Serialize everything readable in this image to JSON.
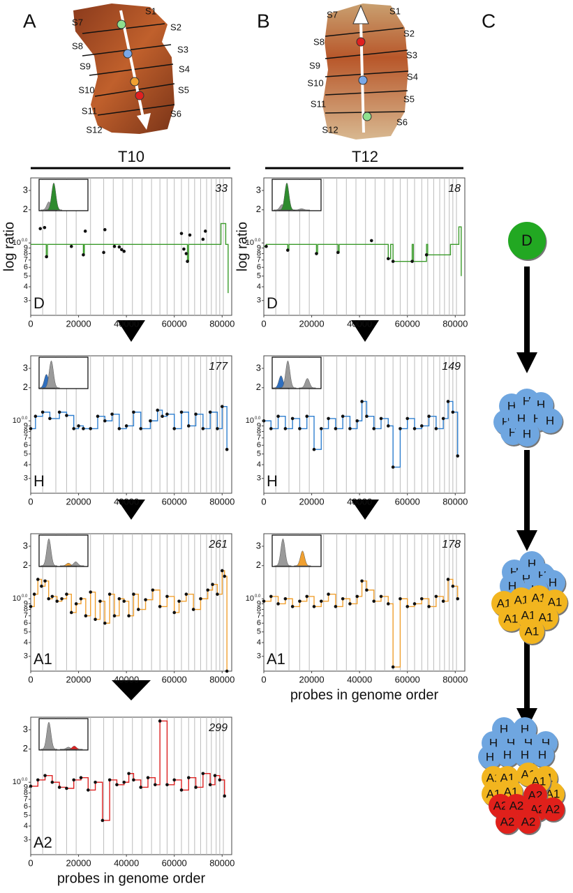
{
  "panels": [
    "A",
    "B",
    "C"
  ],
  "columns": [
    {
      "title": "T10"
    },
    {
      "title": "T12"
    }
  ],
  "images": [
    {
      "slices": [
        "S1",
        "S2",
        "S3",
        "S4",
        "S5",
        "S6",
        "S7",
        "S8",
        "S9",
        "S10",
        "S11",
        "S12"
      ]
    },
    {
      "slices": [
        "S1",
        "S2",
        "S3",
        "S4",
        "S5",
        "S6",
        "S7",
        "S8",
        "S9",
        "S10",
        "S11",
        "S12"
      ]
    }
  ],
  "chromosome_boundaries": [
    5000,
    10500,
    15000,
    19000,
    25000,
    30500,
    34500,
    38500,
    42500,
    46500,
    50500,
    54000,
    57000,
    60000,
    63000,
    66000,
    68500,
    71000,
    73500,
    75500,
    77500,
    79000,
    80500
  ],
  "chart_data": [
    {
      "type": "step",
      "label": "D",
      "count": 33,
      "ylabel": "log ratio",
      "log": true,
      "xlim": [
        0,
        84000
      ],
      "xticks": [
        0,
        20000,
        40000,
        60000,
        80000
      ],
      "ylim": [
        0.22,
        3.9
      ],
      "yticks": [
        3,
        2,
        {
          "value": 1,
          "label": "10",
          "superscript": "0.0"
        },
        {
          "value": 0.9,
          "label": "9"
        },
        {
          "value": 0.8,
          "label": "8"
        },
        {
          "value": 0.7,
          "label": "7"
        },
        {
          "value": 0.6,
          "label": "6"
        },
        {
          "value": 0.5,
          "label": "5"
        },
        {
          "value": 0.4,
          "label": "4"
        },
        {
          "value": 0.3,
          "label": "3"
        }
      ],
      "inset": {
        "peaks": [
          {
            "center": 0.2,
            "height": 0.3,
            "color": "#9a9a9a"
          },
          {
            "center": 0.3,
            "height": 1,
            "color": "#2e8b2e"
          }
        ]
      },
      "line": {
        "color": "#3a9a2a",
        "x": [
          0,
          6500,
          7000,
          22000,
          22400,
          60000,
          65500,
          66000,
          79500,
          81500,
          82500
        ],
        "values": [
          0.97,
          0.75,
          0.97,
          0.78,
          0.97,
          0.97,
          0.68,
          0.97,
          1.5,
          0.97,
          0.35
        ]
      },
      "points": {
        "x": [
          4000,
          5800,
          6600,
          17000,
          22000,
          22800,
          30500,
          31000,
          35000,
          37000,
          38000,
          39000,
          63000,
          64000,
          65000,
          65500,
          66500,
          72000,
          73000
        ],
        "values": [
          1.35,
          1.38,
          0.75,
          0.93,
          0.78,
          1.28,
          0.82,
          1.32,
          0.93,
          0.92,
          0.87,
          0.84,
          1.22,
          0.88,
          0.8,
          0.68,
          1.18,
          1.08,
          1.28
        ]
      }
    },
    {
      "type": "step",
      "label": "D",
      "count": 18,
      "ylabel": "log ratio",
      "log": true,
      "xlim": [
        0,
        84000
      ],
      "xticks": [
        0,
        20000,
        40000,
        60000,
        80000
      ],
      "ylim": [
        0.22,
        3.9
      ],
      "yticks": [
        3,
        2,
        {
          "value": 1,
          "label": "10",
          "superscript": "0.0"
        },
        {
          "value": 0.9,
          "label": "9"
        },
        {
          "value": 0.8,
          "label": "8"
        },
        {
          "value": 0.7,
          "label": "7"
        },
        {
          "value": 0.6,
          "label": "6"
        },
        {
          "value": 0.5,
          "label": "5"
        },
        {
          "value": 0.4,
          "label": "4"
        },
        {
          "value": 0.3,
          "label": "3"
        }
      ],
      "inset": {
        "peaks": [
          {
            "center": 0.2,
            "height": 0.2,
            "color": "#9a9a9a"
          },
          {
            "center": 0.3,
            "height": 1,
            "color": "#2e8b2e"
          },
          {
            "center": 0.6,
            "height": 0.05,
            "color": "#9a9a9a"
          }
        ]
      },
      "line": {
        "color": "#3a9a2a",
        "x": [
          0,
          1000,
          10000,
          10500,
          22000,
          22500,
          31000,
          31500,
          52000,
          53000,
          54000,
          62000,
          62500,
          68000,
          68500,
          78000,
          81500,
          82500
        ],
        "values": [
          0.93,
          0.97,
          0.86,
          0.97,
          0.8,
          0.97,
          0.82,
          0.97,
          0.72,
          0.97,
          0.68,
          0.97,
          0.68,
          0.97,
          0.78,
          0.97,
          1.4,
          0.5
        ]
      },
      "points": {
        "x": [
          1000,
          10000,
          22000,
          31000,
          45000,
          52000,
          54000,
          62000,
          68000
        ],
        "values": [
          0.93,
          0.86,
          0.8,
          0.82,
          1.05,
          0.72,
          0.68,
          0.68,
          0.78
        ]
      }
    },
    {
      "type": "step",
      "label": "H",
      "count": 177,
      "log": true,
      "xlim": [
        0,
        84000
      ],
      "xticks": [
        0,
        20000,
        40000,
        60000,
        80000
      ],
      "ylim": [
        0.22,
        3.9
      ],
      "yticks": [
        3,
        2,
        {
          "value": 1,
          "label": "10",
          "superscript": "0.0"
        },
        {
          "value": 0.9,
          "label": "9"
        },
        {
          "value": 0.8,
          "label": "8"
        },
        {
          "value": 0.7,
          "label": "7"
        },
        {
          "value": 0.6,
          "label": "6"
        },
        {
          "value": 0.5,
          "label": "5"
        },
        {
          "value": 0.4,
          "label": "4"
        },
        {
          "value": 0.3,
          "label": "3"
        }
      ],
      "inset": {
        "peaks": [
          {
            "center": 0.15,
            "height": 0.5,
            "color": "#2f6fbf"
          },
          {
            "center": 0.25,
            "height": 1,
            "color": "#9a9a9a"
          }
        ]
      },
      "line": {
        "color": "#2f7fcf",
        "x": [
          0,
          2000,
          5000,
          8000,
          12000,
          15000,
          18000,
          20000,
          22000,
          25000,
          28000,
          31000,
          34000,
          37000,
          40000,
          43000,
          46000,
          50000,
          53000,
          55000,
          57000,
          60000,
          63000,
          66000,
          69000,
          72000,
          75000,
          78000,
          80000,
          82000
        ],
        "values": [
          0.85,
          1.1,
          1.2,
          1.05,
          1.2,
          1.12,
          0.85,
          0.9,
          0.85,
          0.85,
          1.1,
          1.0,
          1.15,
          0.85,
          0.9,
          1.2,
          0.85,
          1.0,
          1.25,
          1.1,
          1.15,
          0.85,
          1.2,
          0.9,
          1.15,
          0.85,
          1.2,
          0.85,
          1.35,
          0.55
        ]
      }
    },
    {
      "type": "step",
      "label": "H",
      "count": 149,
      "log": true,
      "xlim": [
        0,
        84000
      ],
      "xticks": [
        0,
        20000,
        40000,
        60000,
        80000
      ],
      "ylim": [
        0.22,
        3.9
      ],
      "yticks": [
        3,
        2,
        {
          "value": 1,
          "label": "10",
          "superscript": "0.0"
        },
        {
          "value": 0.9,
          "label": "9"
        },
        {
          "value": 0.8,
          "label": "8"
        },
        {
          "value": 0.7,
          "label": "7"
        },
        {
          "value": 0.6,
          "label": "6"
        },
        {
          "value": 0.5,
          "label": "5"
        },
        {
          "value": 0.4,
          "label": "4"
        },
        {
          "value": 0.3,
          "label": "3"
        }
      ],
      "inset": {
        "peaks": [
          {
            "center": 0.18,
            "height": 0.45,
            "color": "#2f6fbf"
          },
          {
            "center": 0.32,
            "height": 1,
            "color": "#9a9a9a"
          },
          {
            "center": 0.72,
            "height": 0.35,
            "color": "#9a9a9a"
          }
        ]
      },
      "line": {
        "color": "#2f7fcf",
        "x": [
          0,
          3000,
          6000,
          9000,
          12000,
          15000,
          18000,
          21000,
          24000,
          27000,
          30000,
          33000,
          36000,
          39000,
          41000,
          43000,
          46000,
          49000,
          52000,
          54000,
          57000,
          60000,
          63000,
          66000,
          69000,
          72000,
          75000,
          77000,
          79000,
          81000
        ],
        "values": [
          1.0,
          0.85,
          1.1,
          0.85,
          1.05,
          0.85,
          1.1,
          0.55,
          0.85,
          1.05,
          0.85,
          1.1,
          0.85,
          1.0,
          1.5,
          1.1,
          0.85,
          1.05,
          0.9,
          0.38,
          0.85,
          1.05,
          0.85,
          0.9,
          1.1,
          0.85,
          1.05,
          1.5,
          1.2,
          0.48
        ]
      }
    },
    {
      "type": "step",
      "label": "A1",
      "count": 261,
      "log": true,
      "xlim": [
        0,
        84000
      ],
      "xticks": [
        0,
        20000,
        40000,
        60000,
        80000
      ],
      "ylim": [
        0.22,
        3.9
      ],
      "yticks": [
        3,
        2,
        {
          "value": 1,
          "label": "10",
          "superscript": "0.0"
        },
        {
          "value": 0.9,
          "label": "9"
        },
        {
          "value": 0.8,
          "label": "8"
        },
        {
          "value": 0.7,
          "label": "7"
        },
        {
          "value": 0.6,
          "label": "6"
        },
        {
          "value": 0.5,
          "label": "5"
        },
        {
          "value": 0.4,
          "label": "4"
        },
        {
          "value": 0.3,
          "label": "3"
        }
      ],
      "inset": {
        "peaks": [
          {
            "center": 0.2,
            "height": 1,
            "color": "#9a9a9a"
          },
          {
            "center": 0.6,
            "height": 0.1,
            "color": "#f0a030"
          },
          {
            "center": 0.75,
            "height": 0.15,
            "color": "#9a9a9a"
          }
        ]
      },
      "line": {
        "color": "#f0a030",
        "x": [
          0,
          1500,
          3000,
          4500,
          6000,
          7500,
          9000,
          11000,
          13000,
          15000,
          17000,
          19000,
          21000,
          23000,
          25000,
          27000,
          29000,
          31000,
          33000,
          35000,
          37000,
          39000,
          41000,
          43000,
          45000,
          48000,
          51000,
          54000,
          57000,
          60000,
          62000,
          65000,
          68000,
          71000,
          74000,
          76000,
          78000,
          80000,
          81000,
          82000
        ],
        "values": [
          0.85,
          1.1,
          1.5,
          1.3,
          1.45,
          1.0,
          1.05,
          0.95,
          1.0,
          1.1,
          0.75,
          0.9,
          1.0,
          0.7,
          1.15,
          0.65,
          0.95,
          0.6,
          1.1,
          0.7,
          1.0,
          0.95,
          0.7,
          1.1,
          0.8,
          0.98,
          1.2,
          0.85,
          1.05,
          0.75,
          0.95,
          1.1,
          0.8,
          1.0,
          1.2,
          1.35,
          1.1,
          1.8,
          1.6,
          0.22
        ]
      }
    },
    {
      "type": "step",
      "label": "A1",
      "count": 178,
      "xlabel": "probes in genome order",
      "log": true,
      "xlim": [
        0,
        84000
      ],
      "xticks": [
        0,
        20000,
        40000,
        60000,
        80000
      ],
      "ylim": [
        0.22,
        3.9
      ],
      "yticks": [
        3,
        2,
        {
          "value": 1,
          "label": "10",
          "superscript": "0.0"
        },
        {
          "value": 0.9,
          "label": "9"
        },
        {
          "value": 0.8,
          "label": "8"
        },
        {
          "value": 0.7,
          "label": "7"
        },
        {
          "value": 0.6,
          "label": "6"
        },
        {
          "value": 0.5,
          "label": "5"
        },
        {
          "value": 0.4,
          "label": "4"
        },
        {
          "value": 0.3,
          "label": "3"
        }
      ],
      "inset": {
        "peaks": [
          {
            "center": 0.22,
            "height": 1,
            "color": "#9a9a9a"
          },
          {
            "center": 0.62,
            "height": 0.55,
            "color": "#f0a030"
          }
        ]
      },
      "line": {
        "color": "#f0a030",
        "x": [
          0,
          3000,
          6000,
          9000,
          12000,
          15000,
          18000,
          21000,
          24000,
          27000,
          30000,
          33000,
          36000,
          39000,
          41000,
          43000,
          46000,
          49000,
          52000,
          54000,
          57000,
          60000,
          63000,
          66000,
          69000,
          72000,
          75000,
          77000,
          79000,
          81000
        ],
        "values": [
          0.95,
          1.05,
          0.9,
          1.0,
          0.85,
          0.95,
          1.05,
          0.85,
          0.95,
          1.1,
          0.85,
          1.0,
          0.9,
          1.05,
          1.45,
          1.2,
          0.95,
          1.05,
          0.9,
          0.24,
          1.0,
          0.85,
          0.9,
          1.0,
          0.85,
          1.05,
          0.95,
          1.5,
          1.3,
          1.0
        ]
      }
    },
    {
      "type": "step",
      "label": "A2",
      "count": 299,
      "xlabel": "probes in genome order",
      "log": true,
      "xlim": [
        0,
        84000
      ],
      "xticks": [
        0,
        20000,
        40000,
        60000,
        80000
      ],
      "ylim": [
        0.22,
        3.9
      ],
      "yticks": [
        3,
        2,
        {
          "value": 1,
          "label": "10",
          "superscript": "0.0"
        },
        {
          "value": 0.9,
          "label": "9"
        },
        {
          "value": 0.8,
          "label": "8"
        },
        {
          "value": 0.7,
          "label": "7"
        },
        {
          "value": 0.6,
          "label": "6"
        },
        {
          "value": 0.5,
          "label": "5"
        },
        {
          "value": 0.4,
          "label": "4"
        },
        {
          "value": 0.3,
          "label": "3"
        }
      ],
      "inset": {
        "peaks": [
          {
            "center": 0.2,
            "height": 1,
            "color": "#9a9a9a"
          },
          {
            "center": 0.6,
            "height": 0.08,
            "color": "#9a9a9a"
          },
          {
            "center": 0.72,
            "height": 0.12,
            "color": "#dd2222"
          }
        ]
      },
      "line": {
        "color": "#dd2222",
        "x": [
          0,
          3000,
          6000,
          9000,
          12000,
          15000,
          18000,
          21000,
          24000,
          27000,
          30000,
          33000,
          36000,
          39000,
          41000,
          43000,
          46000,
          49000,
          52000,
          54000,
          57000,
          60000,
          63000,
          66000,
          69000,
          72000,
          75000,
          77000,
          79000,
          81000
        ],
        "values": [
          0.92,
          1.05,
          1.15,
          1.0,
          0.9,
          0.88,
          1.05,
          1.1,
          0.85,
          1.0,
          0.45,
          1.05,
          0.95,
          1.0,
          1.2,
          1.05,
          0.9,
          1.1,
          0.95,
          3.6,
          0.95,
          1.05,
          0.85,
          1.1,
          0.9,
          1.2,
          0.95,
          1.15,
          1.05,
          0.75
        ]
      }
    }
  ],
  "diagram": {
    "cell_colors": {
      "D": "#22a822",
      "H": "#6fa6e0",
      "A1": "#f2b51f",
      "A2": "#e0201b"
    },
    "stages": [
      {
        "cells": [
          "D"
        ]
      },
      {
        "cells": [
          "H",
          "H",
          "H",
          "H",
          "H",
          "H",
          "H",
          "H",
          "H"
        ]
      },
      {
        "cells": [
          "H",
          "H",
          "H",
          "H",
          "H",
          "H",
          "H",
          "A1",
          "A1",
          "A1",
          "A1",
          "A1",
          "A1",
          "A1",
          "A1"
        ]
      },
      {
        "cells": [
          "H",
          "H",
          "H",
          "H",
          "H",
          "H",
          "H",
          "H",
          "H",
          "H",
          "A1",
          "A1",
          "A1",
          "A1",
          "A1",
          "A1",
          "A1",
          "A1",
          "A2",
          "A2",
          "A2",
          "A2",
          "A2",
          "A2",
          "A2"
        ]
      }
    ]
  }
}
